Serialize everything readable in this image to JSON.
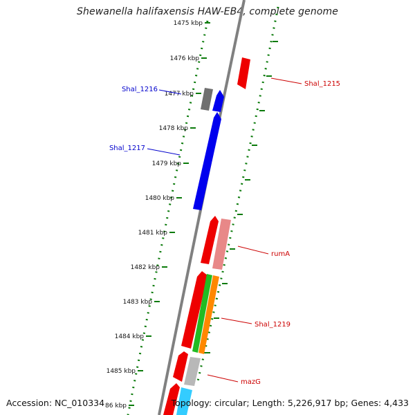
{
  "title": "Shewanella halifaxensis HAW-EB4, complete genome",
  "footer": {
    "accession": "Accession: NC_010334",
    "summary": "Topology: circular; Length: 5,226,917 bp; Genes: 4,433"
  },
  "scale": {
    "ticks": [
      "1475 kbp",
      "1476 kbp",
      "1477 kbp",
      "1478 kbp",
      "1479 kbp",
      "1480 kbp",
      "1481 kbp",
      "1482 kbp",
      "1483 kbp",
      "1484 kbp",
      "1485 kbp",
      "86 kbp"
    ]
  },
  "colors": {
    "backbone": "#808080",
    "scale_ticks": "#0a7a0a",
    "gene_red": "#ee0000",
    "gene_pink": "#e88888",
    "gene_blue": "#0000ee",
    "gene_gray": "#707070",
    "gene_lightgray": "#b8b8b8",
    "gene_green": "#22bb22",
    "gene_orange": "#ff8800",
    "gene_cyan": "#33ccff",
    "label_blue": "#0000cc",
    "label_red": "#cc0000"
  },
  "genes": [
    {
      "label": "Shal_1215",
      "strand": "+",
      "color": "gene_red"
    },
    {
      "label": "Shal_1216",
      "strand": "-",
      "color": "gene_gray"
    },
    {
      "label": "",
      "strand": "-",
      "color": "gene_blue"
    },
    {
      "label": "Shal_1217",
      "strand": "-",
      "color": "gene_blue"
    },
    {
      "label": "",
      "strand": "-",
      "color": "gene_red"
    },
    {
      "label": "rumA",
      "strand": "+",
      "color": "gene_pink"
    },
    {
      "label": "",
      "strand": "-",
      "color": "gene_red"
    },
    {
      "label": "",
      "strand": "+",
      "color": "gene_green"
    },
    {
      "label": "Shal_1219",
      "strand": "+",
      "color": "gene_orange"
    },
    {
      "label": "",
      "strand": "-",
      "color": "gene_red"
    },
    {
      "label": "mazG",
      "strand": "+",
      "color": "gene_lightgray"
    },
    {
      "label": "",
      "strand": "-",
      "color": "gene_red"
    },
    {
      "label": "",
      "strand": "+",
      "color": "gene_cyan"
    }
  ]
}
